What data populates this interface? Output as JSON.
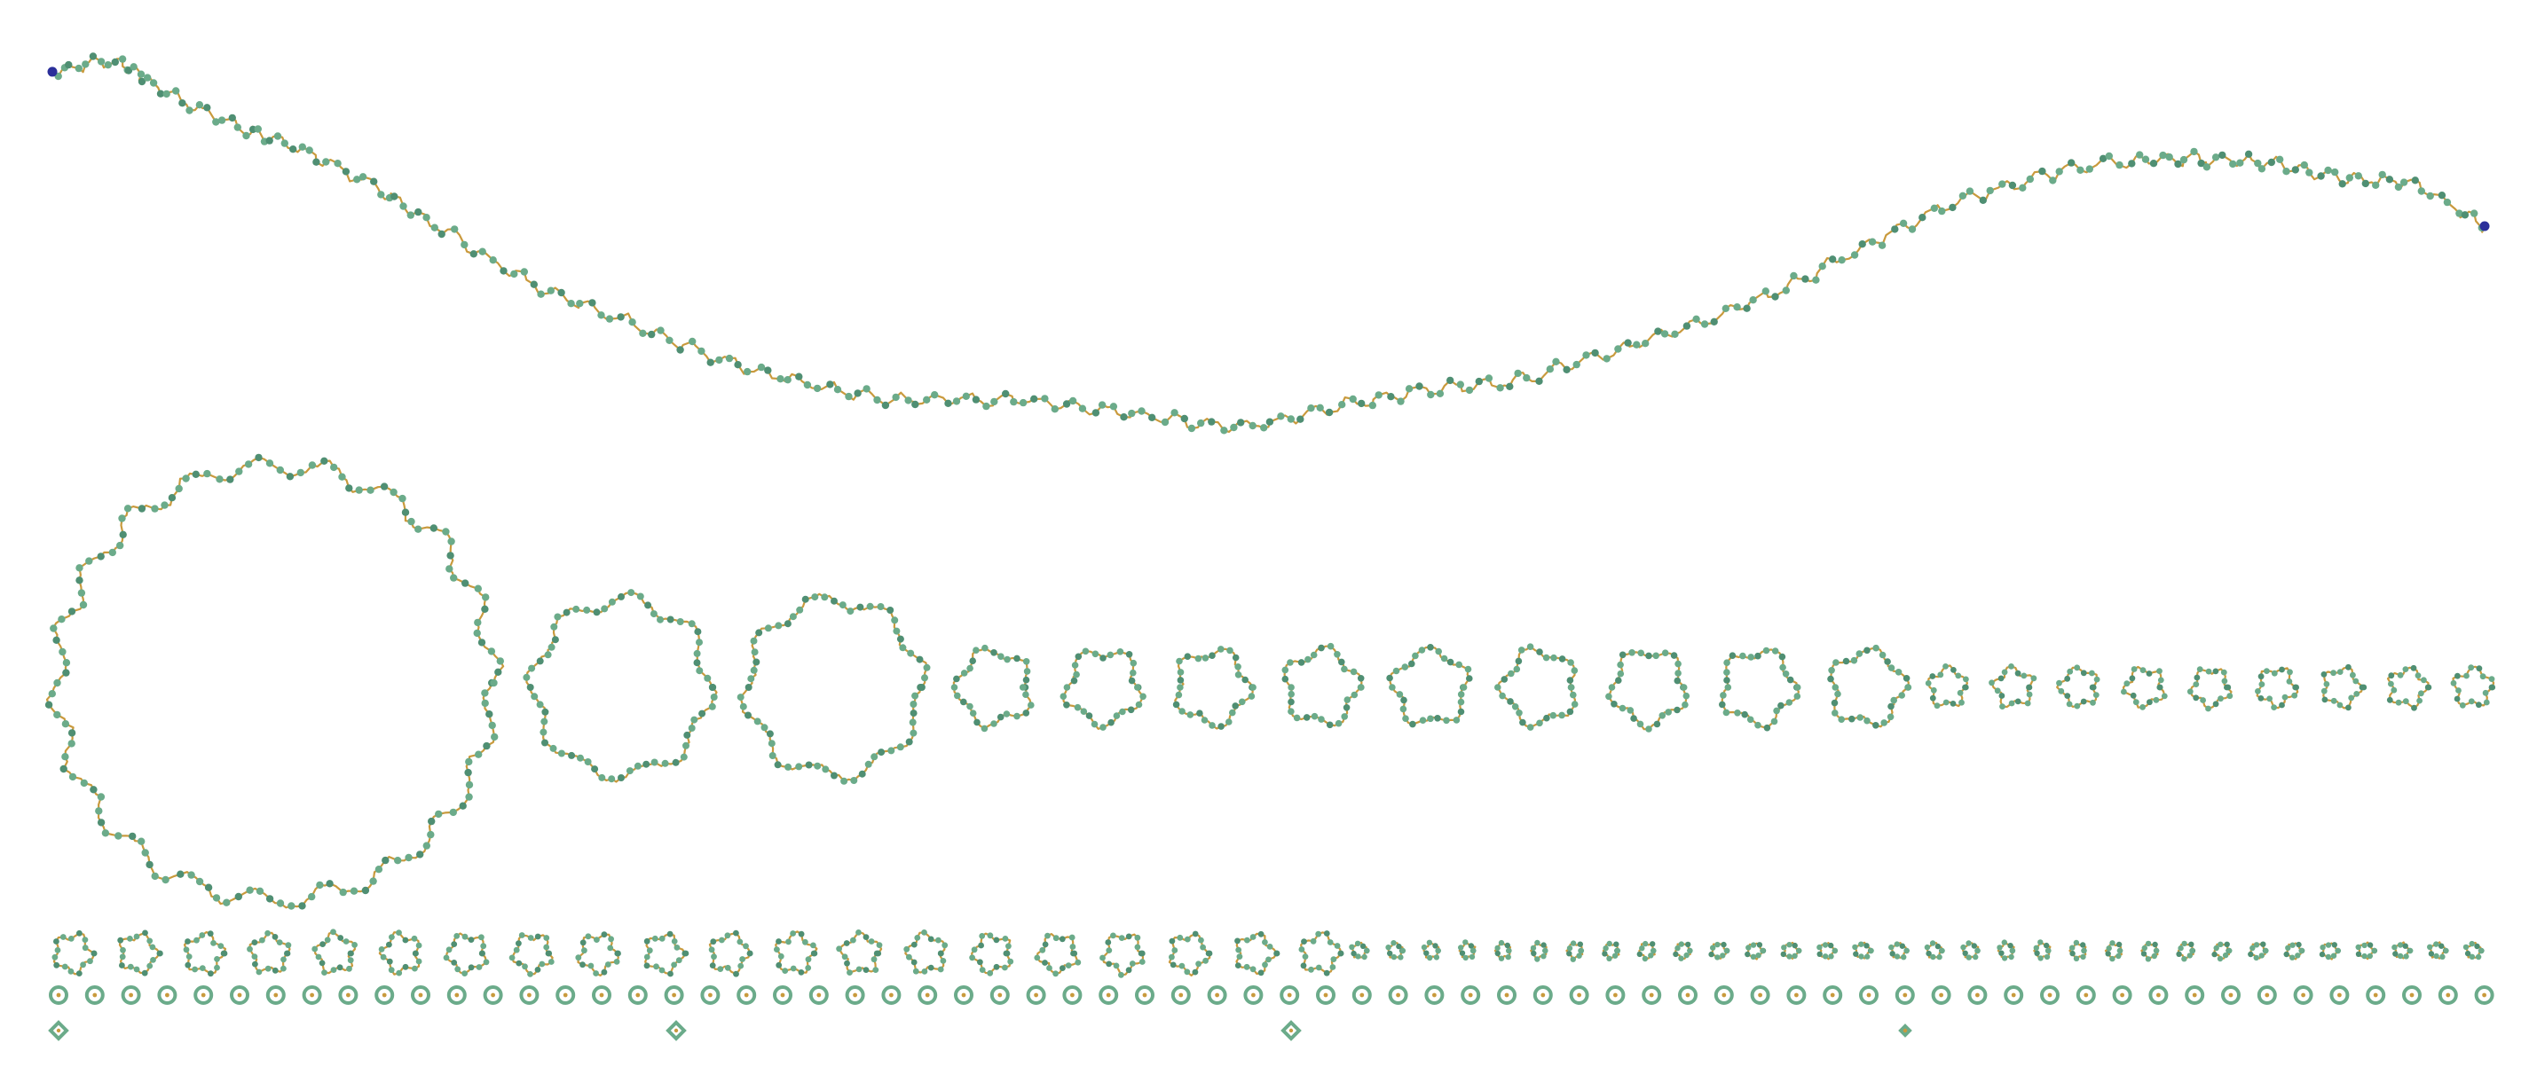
{
  "figure": {
    "description_free": true,
    "colors": {
      "background": "#ffffff",
      "bead": "#6bab8a",
      "bead_dark": "#4f8f73",
      "bond": "#c99a3d",
      "terminal": "#2b2f9a"
    },
    "components": {
      "long_chain": 1,
      "large_ring": 1,
      "medium_rings": 2,
      "small_rings_row1": 9,
      "tiny_rings_row1": 9,
      "tiny_rings_row2": 20,
      "micro_rings_row2": 32,
      "dots_row3": 68,
      "singletons_row4": 4
    }
  }
}
